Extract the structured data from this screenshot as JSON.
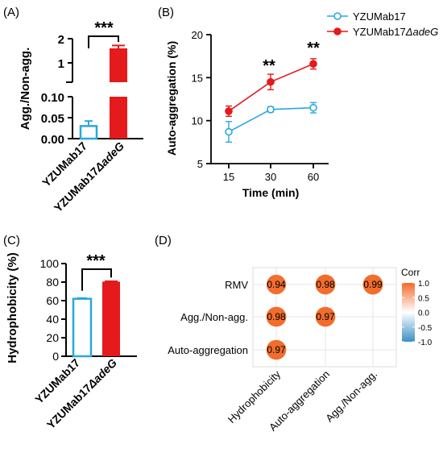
{
  "panels": {
    "a": {
      "label": "(A)"
    },
    "b": {
      "label": "(B)"
    },
    "c": {
      "label": "(C)"
    },
    "d": {
      "label": "(D)"
    }
  },
  "colors": {
    "blue": "#29a8e0",
    "red": "#e41a1c",
    "corr_pos": "#f26b2a",
    "corr_neg": "#3d8fc4",
    "grid": "#e5e5e5"
  },
  "chart_data": [
    {
      "id": "A",
      "type": "bar",
      "ylabel": "Agg./Non-agg.",
      "categories": [
        "YZUMab17",
        "YZUMab17ΔadeG"
      ],
      "category_parts": [
        [
          "YZUMab17",
          ""
        ],
        [
          "YZUMab17",
          "ΔadeG"
        ]
      ],
      "values": [
        0.03,
        1.6
      ],
      "errors": [
        0.012,
        0.12
      ],
      "styles": [
        "outline-blue",
        "filled-red"
      ],
      "y_axis_broken": true,
      "y_segments": [
        {
          "range": [
            0,
            0.1
          ],
          "ticks": [
            "0.00",
            "0.05",
            "0.10"
          ]
        },
        {
          "range": [
            1,
            2
          ],
          "ticks": [
            "1",
            "2"
          ]
        }
      ],
      "significance": "***"
    },
    {
      "id": "B",
      "type": "line",
      "xlabel": "Time (min)",
      "ylabel": "Auto-aggregation (%)",
      "x": [
        15,
        30,
        60
      ],
      "x_ticks": [
        "15",
        "30",
        "60"
      ],
      "ylim": [
        5,
        20
      ],
      "y_ticks": [
        "5",
        "10",
        "15",
        "20"
      ],
      "legend_position": "top-right",
      "series": [
        {
          "name": "YZUMab17",
          "name_parts": [
            "YZUMab17",
            ""
          ],
          "values": [
            8.7,
            11.3,
            11.5
          ],
          "errors": [
            1.2,
            0.3,
            0.6
          ],
          "marker": "open-circle",
          "color": "#29a8e0"
        },
        {
          "name": "YZUMab17ΔadeG",
          "name_parts": [
            "YZUMab17",
            "ΔadeG"
          ],
          "values": [
            11.1,
            14.5,
            16.6
          ],
          "errors": [
            0.6,
            0.9,
            0.6
          ],
          "marker": "filled-circle",
          "color": "#e41a1c"
        }
      ],
      "annotations": [
        {
          "x": 30,
          "text": "**"
        },
        {
          "x": 60,
          "text": "**"
        }
      ]
    },
    {
      "id": "C",
      "type": "bar",
      "ylabel": "Hydrophobicity (%)",
      "categories": [
        "YZUMab17",
        "YZUMab17ΔadeG"
      ],
      "category_parts": [
        [
          "YZUMab17",
          ""
        ],
        [
          "YZUMab17",
          "ΔadeG"
        ]
      ],
      "values": [
        62,
        80.5
      ],
      "errors": [
        0.8,
        0.4
      ],
      "styles": [
        "outline-blue",
        "filled-red"
      ],
      "ylim": [
        0,
        100
      ],
      "y_ticks": [
        "0",
        "20",
        "40",
        "60",
        "80",
        "100"
      ],
      "significance": "***"
    },
    {
      "id": "D",
      "type": "heatmap",
      "rows": [
        "RMV",
        "Agg./Non-agg.",
        "Auto-aggregation"
      ],
      "columns": [
        "Hydrophobicity",
        "Auto-aggregation",
        "Agg./Non-agg."
      ],
      "cells": [
        {
          "row": 0,
          "col": 0,
          "value": 0.94,
          "label": "0.94"
        },
        {
          "row": 0,
          "col": 1,
          "value": 0.98,
          "label": "0.98"
        },
        {
          "row": 0,
          "col": 2,
          "value": 0.99,
          "label": "0.99"
        },
        {
          "row": 1,
          "col": 0,
          "value": 0.98,
          "label": "0.98"
        },
        {
          "row": 1,
          "col": 1,
          "value": 0.97,
          "label": "0.97"
        },
        {
          "row": 2,
          "col": 0,
          "value": 0.97,
          "label": "0.97"
        }
      ],
      "legend_title": "Corr",
      "legend_ticks": [
        "1.0",
        "0.5",
        "0.0",
        "-0.5",
        "-1.0"
      ],
      "legend_range": [
        -1,
        1
      ]
    }
  ]
}
